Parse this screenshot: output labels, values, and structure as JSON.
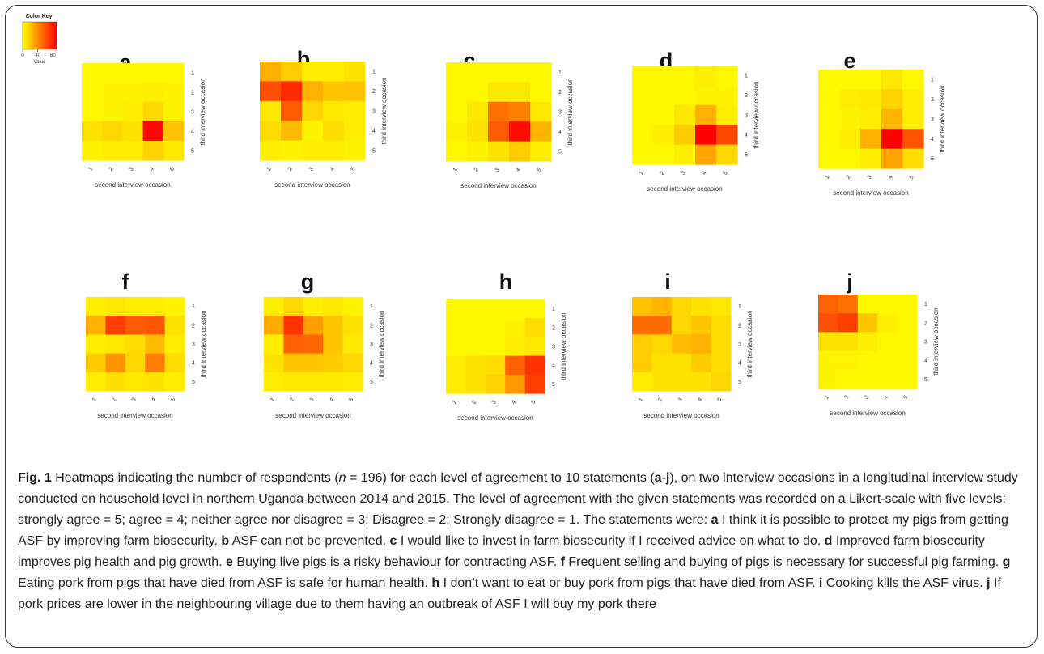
{
  "color_key": {
    "title": "Color Key",
    "axis_label": "Value",
    "ticks": [
      "0",
      "40",
      "80"
    ],
    "range": [
      0,
      90
    ],
    "colors": [
      "#ffff00",
      "#ff0000"
    ]
  },
  "axis_labels": {
    "x": "second interview occasion",
    "y": "third interview occasion"
  },
  "chart_data": [
    {
      "type": "heatmap",
      "panel": "a",
      "x": [
        "1",
        "2",
        "3",
        "4",
        "5"
      ],
      "y": [
        "1",
        "2",
        "3",
        "4",
        "5"
      ],
      "xlabel": "second interview occasion",
      "ylabel": "third interview occasion",
      "values": [
        [
          2,
          2,
          2,
          2,
          2
        ],
        [
          2,
          4,
          4,
          6,
          4
        ],
        [
          2,
          4,
          6,
          14,
          4
        ],
        [
          10,
          14,
          10,
          88,
          22
        ],
        [
          4,
          6,
          6,
          16,
          8
        ]
      ]
    },
    {
      "type": "heatmap",
      "panel": "b",
      "x": [
        "1",
        "2",
        "3",
        "4",
        "5"
      ],
      "y": [
        "1",
        "2",
        "3",
        "4",
        "5"
      ],
      "xlabel": "second interview occasion",
      "ylabel": "third interview occasion",
      "values": [
        [
          28,
          18,
          6,
          6,
          10
        ],
        [
          62,
          75,
          28,
          20,
          22
        ],
        [
          8,
          58,
          14,
          8,
          6
        ],
        [
          12,
          24,
          4,
          12,
          6
        ],
        [
          6,
          4,
          6,
          6,
          4
        ]
      ]
    },
    {
      "type": "heatmap",
      "panel": "c",
      "x": [
        "1",
        "2",
        "3",
        "4",
        "5"
      ],
      "y": [
        "1",
        "2",
        "3",
        "4",
        "5"
      ],
      "xlabel": "second interview occasion",
      "ylabel": "third interview occasion",
      "values": [
        [
          2,
          2,
          2,
          2,
          2
        ],
        [
          2,
          2,
          8,
          8,
          2
        ],
        [
          2,
          8,
          50,
          45,
          8
        ],
        [
          4,
          10,
          58,
          86,
          26
        ],
        [
          2,
          4,
          10,
          18,
          6
        ]
      ]
    },
    {
      "type": "heatmap",
      "panel": "d",
      "x": [
        "1",
        "2",
        "3",
        "4",
        "5"
      ],
      "y": [
        "1",
        "2",
        "3",
        "4",
        "5"
      ],
      "xlabel": "second interview occasion",
      "ylabel": "third interview occasion",
      "values": [
        [
          2,
          2,
          2,
          6,
          2
        ],
        [
          2,
          2,
          2,
          4,
          4
        ],
        [
          2,
          2,
          8,
          28,
          6
        ],
        [
          2,
          6,
          18,
          90,
          65
        ],
        [
          2,
          2,
          6,
          32,
          14
        ]
      ]
    },
    {
      "type": "heatmap",
      "panel": "e",
      "x": [
        "1",
        "2",
        "3",
        "4",
        "5"
      ],
      "y": [
        "1",
        "2",
        "3",
        "4",
        "5"
      ],
      "xlabel": "second interview occasion",
      "ylabel": "third interview occasion",
      "values": [
        [
          2,
          2,
          2,
          8,
          2
        ],
        [
          2,
          6,
          8,
          16,
          6
        ],
        [
          2,
          4,
          6,
          26,
          6
        ],
        [
          2,
          6,
          28,
          90,
          60
        ],
        [
          2,
          2,
          6,
          32,
          12
        ]
      ]
    },
    {
      "type": "heatmap",
      "panel": "f",
      "x": [
        "1",
        "2",
        "3",
        "4",
        "5"
      ],
      "y": [
        "1",
        "2",
        "3",
        "4",
        "5"
      ],
      "xlabel": "second interview occasion",
      "ylabel": "third interview occasion",
      "values": [
        [
          6,
          8,
          6,
          6,
          4
        ],
        [
          28,
          68,
          58,
          60,
          10
        ],
        [
          6,
          8,
          12,
          24,
          6
        ],
        [
          18,
          38,
          14,
          46,
          12
        ],
        [
          6,
          12,
          8,
          10,
          6
        ]
      ]
    },
    {
      "type": "heatmap",
      "panel": "g",
      "x": [
        "1",
        "2",
        "3",
        "4",
        "5"
      ],
      "y": [
        "1",
        "2",
        "3",
        "4",
        "5"
      ],
      "xlabel": "second interview occasion",
      "ylabel": "third interview occasion",
      "values": [
        [
          6,
          14,
          6,
          8,
          4
        ],
        [
          30,
          72,
          34,
          20,
          10
        ],
        [
          6,
          56,
          54,
          20,
          8
        ],
        [
          10,
          20,
          20,
          18,
          14
        ],
        [
          6,
          8,
          8,
          8,
          6
        ]
      ]
    },
    {
      "type": "heatmap",
      "panel": "h",
      "x": [
        "1",
        "2",
        "3",
        "4",
        "5"
      ],
      "y": [
        "1",
        "2",
        "3",
        "4",
        "5"
      ],
      "xlabel": "second interview occasion",
      "ylabel": "third interview occasion",
      "values": [
        [
          2,
          2,
          2,
          2,
          2
        ],
        [
          2,
          2,
          2,
          4,
          12
        ],
        [
          2,
          2,
          2,
          6,
          8
        ],
        [
          6,
          10,
          12,
          56,
          72
        ],
        [
          6,
          10,
          16,
          36,
          68
        ]
      ]
    },
    {
      "type": "heatmap",
      "panel": "i",
      "x": [
        "1",
        "2",
        "3",
        "4",
        "5"
      ],
      "y": [
        "1",
        "2",
        "3",
        "4",
        "5"
      ],
      "xlabel": "second interview occasion",
      "ylabel": "third interview occasion",
      "values": [
        [
          22,
          26,
          14,
          10,
          8
        ],
        [
          52,
          52,
          14,
          20,
          12
        ],
        [
          18,
          14,
          24,
          28,
          12
        ],
        [
          18,
          10,
          10,
          18,
          12
        ],
        [
          6,
          10,
          10,
          10,
          14
        ]
      ]
    },
    {
      "type": "heatmap",
      "panel": "j",
      "x": [
        "1",
        "2",
        "3",
        "4",
        "5"
      ],
      "y": [
        "1",
        "2",
        "3",
        "4",
        "5"
      ],
      "xlabel": "second interview occasion",
      "ylabel": "third interview occasion",
      "values": [
        [
          55,
          50,
          2,
          2,
          2
        ],
        [
          62,
          68,
          20,
          6,
          2
        ],
        [
          10,
          10,
          6,
          2,
          2
        ],
        [
          4,
          4,
          2,
          2,
          2
        ],
        [
          4,
          2,
          2,
          2,
          2
        ]
      ]
    }
  ],
  "caption": {
    "fig_label": "Fig. 1",
    "segments": [
      {
        "t": "Heatmaps indicating the number of respondents ("
      },
      {
        "t": "n",
        "i": true
      },
      {
        "t": " = 196) for each level of agreement to 10 statements ("
      },
      {
        "t": "a",
        "b": true
      },
      {
        "t": "-"
      },
      {
        "t": "j",
        "b": true
      },
      {
        "t": "), on two interview occasions in a longitudinal interview study conducted on household level in northern Uganda between 2014 and 2015. The level of agreement with the given statements was recorded on a Likert-scale with five levels: strongly agree = 5; agree = 4; neither agree nor disagree = 3; Disagree = 2; Strongly disagree = 1. The statements were: "
      },
      {
        "t": "a",
        "b": true
      },
      {
        "t": " I think it is possible to protect my pigs from getting ASF by improving farm biosecurity. "
      },
      {
        "t": "b",
        "b": true
      },
      {
        "t": " ASF can not be prevented. "
      },
      {
        "t": "c",
        "b": true
      },
      {
        "t": " I would like to invest in farm biosecurity if I received advice on what to do. "
      },
      {
        "t": "d",
        "b": true
      },
      {
        "t": " Improved farm biosecurity improves pig health and pig growth. "
      },
      {
        "t": "e",
        "b": true
      },
      {
        "t": " Buying live pigs is a risky behaviour for contracting ASF. "
      },
      {
        "t": "f",
        "b": true
      },
      {
        "t": " Frequent selling and buying of pigs is necessary for successful pig farming. "
      },
      {
        "t": "g",
        "b": true
      },
      {
        "t": " Eating pork from pigs that have died from ASF is safe for human health. "
      },
      {
        "t": "h",
        "b": true
      },
      {
        "t": " I don’t want to eat or buy pork from pigs that have died from ASF. "
      },
      {
        "t": "i",
        "b": true
      },
      {
        "t": " Cooking kills the ASF virus. "
      },
      {
        "t": "j",
        "b": true
      },
      {
        "t": " If pork prices are lower in the neighbouring village due to them having an outbreak of ASF I will buy my pork there"
      }
    ]
  }
}
